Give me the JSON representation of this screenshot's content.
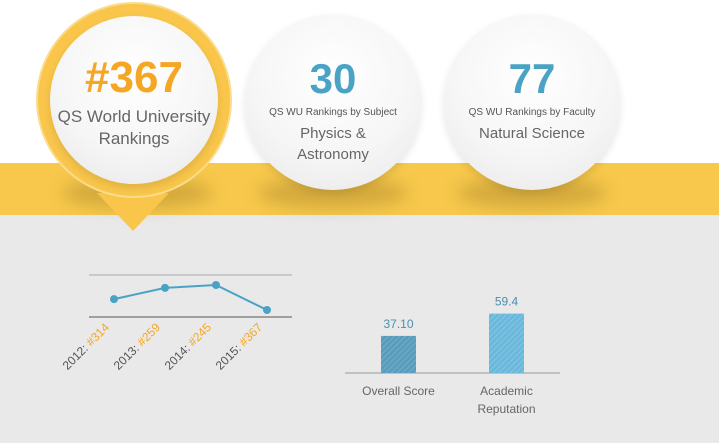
{
  "colors": {
    "yellow": "#f7c84b",
    "orange": "#f5a623",
    "blue": "#4aa3c5",
    "gray_bg": "#e9e9e9"
  },
  "world_rank": {
    "value": "#367",
    "label_line1": "QS World University",
    "label_line2": "Rankings"
  },
  "subject_rank": {
    "value": "30",
    "caption": "QS WU Rankings by Subject",
    "label_line1": "Physics &",
    "label_line2": "Astronomy"
  },
  "faculty_rank": {
    "value": "77",
    "caption": "QS WU Rankings by Faculty",
    "label": "Natural Science"
  },
  "chart_data": [
    {
      "type": "line",
      "x": [
        "2012",
        "2013",
        "2014",
        "2015"
      ],
      "y": [
        314,
        259,
        245,
        367
      ],
      "point_labels": [
        "#314",
        "#259",
        "#245",
        "#367"
      ],
      "y_inverted": true,
      "grid": false
    },
    {
      "type": "bar",
      "categories": [
        "Overall Score",
        "Academic Reputation"
      ],
      "category_lines": [
        [
          "Overall Score"
        ],
        [
          "Academic",
          "Reputation"
        ]
      ],
      "values": [
        37.1,
        59.4
      ],
      "value_labels": [
        "37.10",
        "59.4"
      ],
      "ylim": [
        0,
        100
      ]
    }
  ]
}
